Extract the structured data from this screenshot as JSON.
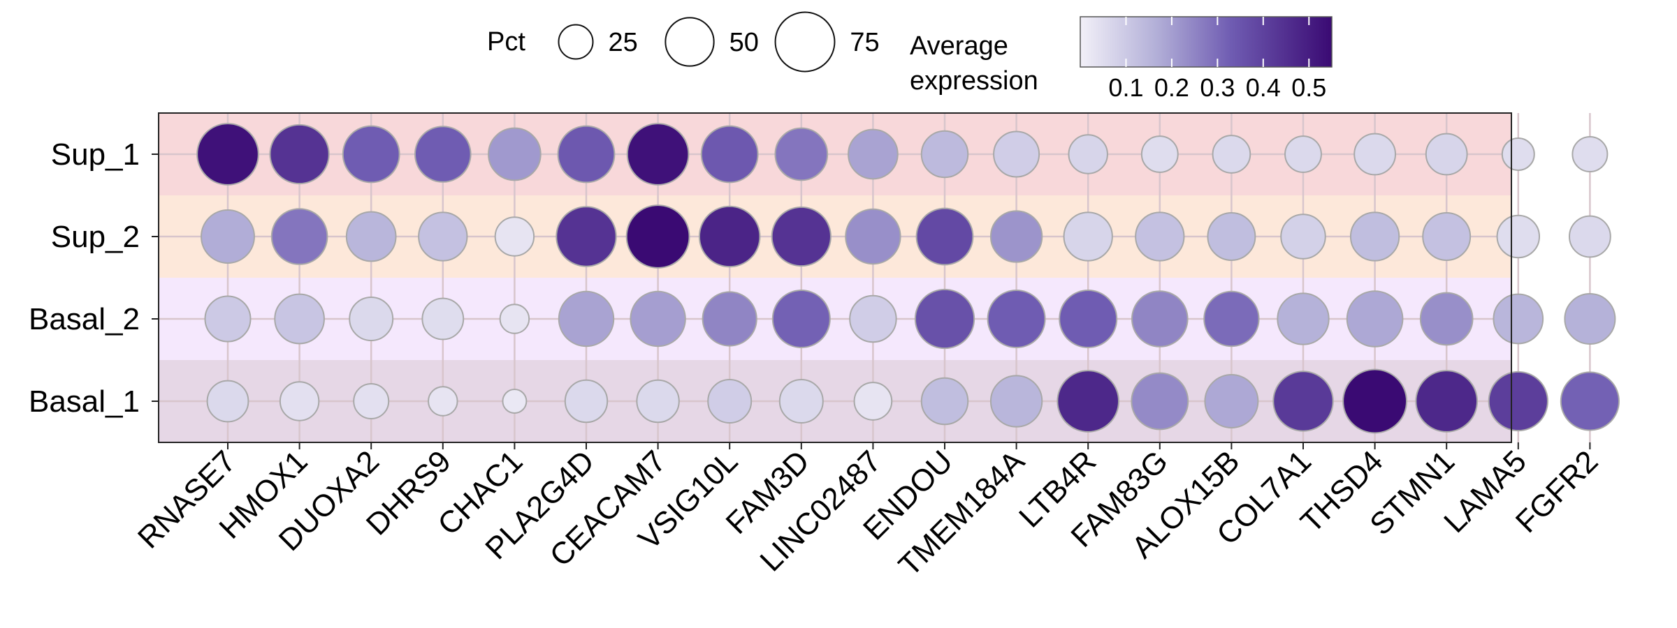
{
  "chart_data": {
    "type": "dotplot",
    "title": "",
    "xlabel": "",
    "ylabel": "",
    "x_categories": [
      "RNASE7",
      "HMOX1",
      "DUOXA2",
      "DHRS9",
      "CHAC1",
      "PLA2G4D",
      "CEACAM7",
      "VSIG10L",
      "FAM3D",
      "LINC02487",
      "ENDOU",
      "TMEM184A",
      "LTB4R",
      "FAM83G",
      "ALOX15B",
      "COL7A1",
      "THSD4",
      "STMN1",
      "LAMA5",
      "FGFR2"
    ],
    "y_categories": [
      "Sup_1",
      "Sup_2",
      "Basal_2",
      "Basal_1"
    ],
    "row_band_colors": [
      "#f8d8da",
      "#fde8da",
      "#f5e8fd",
      "#e6d7e6"
    ],
    "size_legend": {
      "title": "Pct",
      "values": [
        25,
        50,
        75
      ]
    },
    "color_legend": {
      "title_line1": "Average",
      "title_line2": "expression",
      "ticks": [
        "0.1",
        "0.2",
        "0.3",
        "0.4",
        "0.5"
      ],
      "range": [
        0.0,
        0.55
      ],
      "low_color": "#f2f0f8",
      "high_color": "#3a0a73"
    },
    "series": [
      {
        "name": "Sup_1",
        "pct": [
          80,
          74,
          68,
          66,
          58,
          68,
          80,
          68,
          58,
          52,
          46,
          44,
          32,
          28,
          30,
          28,
          36,
          36,
          22,
          26
        ],
        "expr": [
          0.53,
          0.44,
          0.33,
          0.33,
          0.21,
          0.34,
          0.53,
          0.34,
          0.28,
          0.19,
          0.14,
          0.09,
          0.07,
          0.05,
          0.06,
          0.06,
          0.06,
          0.07,
          0.05,
          0.05
        ]
      },
      {
        "name": "Sup_2",
        "pct": [
          60,
          66,
          52,
          50,
          32,
          76,
          84,
          78,
          74,
          64,
          68,
          56,
          50,
          50,
          48,
          42,
          50,
          48,
          38,
          36
        ],
        "expr": [
          0.17,
          0.28,
          0.15,
          0.12,
          0.03,
          0.44,
          0.55,
          0.48,
          0.44,
          0.23,
          0.38,
          0.22,
          0.07,
          0.12,
          0.13,
          0.08,
          0.13,
          0.12,
          0.05,
          0.06
        ]
      },
      {
        "name": "Basal_2",
        "pct": [
          44,
          52,
          40,
          36,
          18,
          64,
          64,
          62,
          70,
          46,
          74,
          70,
          70,
          66,
          64,
          56,
          66,
          58,
          52,
          54
        ],
        "expr": [
          0.1,
          0.11,
          0.06,
          0.05,
          0.03,
          0.19,
          0.2,
          0.25,
          0.32,
          0.09,
          0.36,
          0.33,
          0.33,
          0.25,
          0.3,
          0.16,
          0.18,
          0.23,
          0.15,
          0.16
        ]
      },
      {
        "name": "Basal_1",
        "pct": [
          36,
          32,
          26,
          18,
          12,
          38,
          38,
          40,
          40,
          30,
          46,
          56,
          80,
          68,
          60,
          76,
          86,
          80,
          74,
          72
        ],
        "expr": [
          0.06,
          0.04,
          0.04,
          0.03,
          0.02,
          0.06,
          0.06,
          0.09,
          0.06,
          0.03,
          0.13,
          0.15,
          0.47,
          0.24,
          0.18,
          0.42,
          0.55,
          0.47,
          0.41,
          0.32
        ]
      }
    ]
  }
}
